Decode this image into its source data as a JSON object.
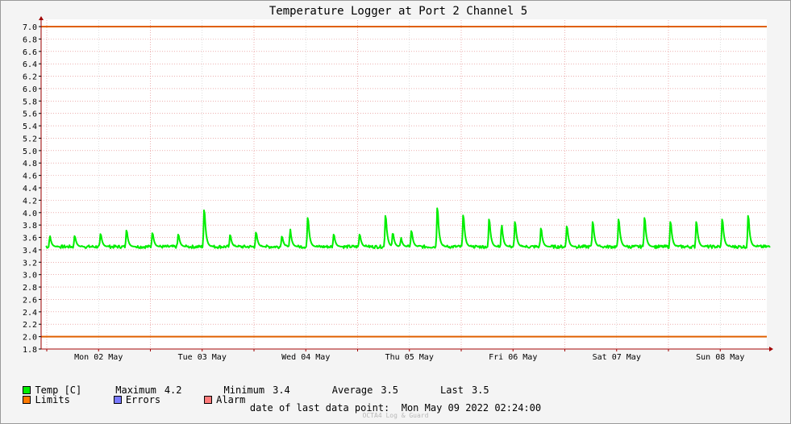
{
  "chart_data": {
    "type": "line",
    "title": "Temperature Logger at Port 2 Channel 5",
    "ylim": [
      1.8,
      7.0
    ],
    "y_ticks": [
      "1.8",
      "2.0",
      "2.2",
      "2.4",
      "2.6",
      "2.8",
      "3.0",
      "3.2",
      "3.4",
      "3.6",
      "3.8",
      "4.0",
      "4.2",
      "4.4",
      "4.6",
      "4.8",
      "5.0",
      "5.2",
      "5.4",
      "5.6",
      "5.8",
      "6.0",
      "6.2",
      "6.4",
      "6.6",
      "6.8",
      "7.0"
    ],
    "x_axis_labels": [
      "Mon 02 May",
      "Tue 03 May",
      "Wed 04 May",
      "Thu 05 May",
      "Fri 06 May",
      "Sat 07 May",
      "Sun 08 May"
    ],
    "x_range_days": [
      0.0,
      7.0
    ],
    "grid": true,
    "limits": [
      2.0,
      7.0
    ],
    "series": [
      {
        "name": "Temp [C]",
        "color": "#00ee00",
        "baseline": 3.45,
        "peaks": [
          {
            "day": 0.03,
            "value": 3.64
          },
          {
            "day": 0.27,
            "value": 3.66
          },
          {
            "day": 0.52,
            "value": 3.7
          },
          {
            "day": 0.77,
            "value": 3.77
          },
          {
            "day": 1.02,
            "value": 3.72
          },
          {
            "day": 1.27,
            "value": 3.69
          },
          {
            "day": 1.52,
            "value": 4.17
          },
          {
            "day": 1.77,
            "value": 3.68
          },
          {
            "day": 2.02,
            "value": 3.73
          },
          {
            "day": 2.27,
            "value": 3.65
          },
          {
            "day": 2.35,
            "value": 3.75
          },
          {
            "day": 2.52,
            "value": 4.02
          },
          {
            "day": 2.77,
            "value": 3.69
          },
          {
            "day": 3.02,
            "value": 3.69
          },
          {
            "day": 3.27,
            "value": 4.06
          },
          {
            "day": 3.34,
            "value": 3.72
          },
          {
            "day": 3.42,
            "value": 3.6
          },
          {
            "day": 3.52,
            "value": 3.76
          },
          {
            "day": 3.77,
            "value": 4.21
          },
          {
            "day": 4.02,
            "value": 4.07
          },
          {
            "day": 4.27,
            "value": 3.99
          },
          {
            "day": 4.39,
            "value": 3.86
          },
          {
            "day": 4.52,
            "value": 3.94
          },
          {
            "day": 4.77,
            "value": 3.81
          },
          {
            "day": 5.02,
            "value": 3.85
          },
          {
            "day": 5.27,
            "value": 3.94
          },
          {
            "day": 5.52,
            "value": 3.99
          },
          {
            "day": 5.77,
            "value": 4.02
          },
          {
            "day": 6.02,
            "value": 3.94
          },
          {
            "day": 6.27,
            "value": 3.94
          },
          {
            "day": 6.52,
            "value": 3.99
          },
          {
            "day": 6.77,
            "value": 4.06
          }
        ]
      }
    ]
  },
  "legend": {
    "temp_label": "Temp [C]",
    "max_label": "Maximum",
    "max_value": "4.2",
    "min_label": "Minimum",
    "min_value": "3.4",
    "avg_label": "Average",
    "avg_value": "3.5",
    "last_label": "Last",
    "last_value": "3.5",
    "limits_label": "Limits",
    "errors_label": "Errors",
    "alarm_label": "Alarm"
  },
  "colors": {
    "temp": "#00ee00",
    "limits": "#ff7a00",
    "errors": "#7a7aff",
    "alarm": "#ff7a7a",
    "axis": "#a00000",
    "grid_major": "#e08080",
    "grid_minor": "#c8c8c8",
    "limit_line": "#e06000"
  },
  "footer": {
    "label": "date of last data point:",
    "value": "Mon May 09 2022 02:24:00"
  },
  "credit": "OCTA4 Log & Guard"
}
